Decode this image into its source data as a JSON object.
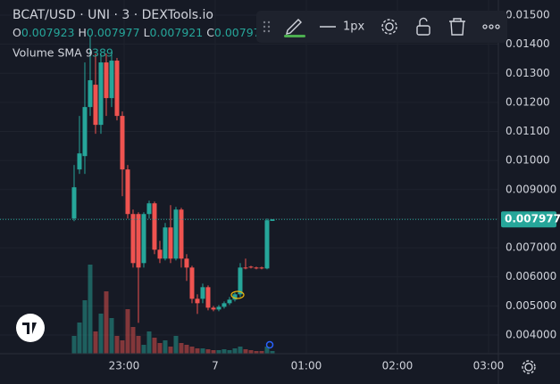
{
  "chart_data": {
    "type": "candlestick",
    "title": "BCAT/USD · UNI · 3 · DEXTools.io",
    "ohlc_labels": [
      "O",
      "H",
      "L",
      "C"
    ],
    "indicator": {
      "label": "Volume SMA 9",
      "value": 389
    },
    "toolbar": {
      "width_label": "1px"
    },
    "up_color": "#26a69a",
    "down_color": "#ef5350",
    "open": [
      0.008006,
      0.009693,
      0.010153,
      0.01184,
      0.012607,
      0.011227,
      0.013374,
      0.012147,
      0.013436,
      0.011534,
      0.009693,
      0.00816,
      0.00816,
      0.006472,
      0.00816,
      0.008528,
      0.006933,
      0.006626,
      0.007699,
      0.006626,
      0.008313,
      0.006626,
      0.006319,
      0.005245,
      0.005245,
      0.005644,
      0.004939,
      0.004877,
      0.004969,
      0.005092,
      0.005215,
      0.005399,
      0.006319,
      0.00635,
      0.006319,
      0.006319,
      0.006288,
      0.007923
    ],
    "high": [
      0.009847,
      0.011534,
      0.013374,
      0.014294,
      0.013681,
      0.013681,
      0.013681,
      0.01362,
      0.013528,
      0.011687,
      0.009847,
      0.008313,
      0.008221,
      0.008221,
      0.00862,
      0.008589,
      0.007239,
      0.007853,
      0.008466,
      0.008405,
      0.008374,
      0.006779,
      0.00638,
      0.005399,
      0.005767,
      0.005706,
      0.005,
      0.005031,
      0.005153,
      0.005307,
      0.00546,
      0.006472,
      0.006626,
      0.00638,
      0.00635,
      0.00635,
      0.008006,
      0.007977
    ],
    "low": [
      0.007914,
      0.00954,
      0.00954,
      0.011534,
      0.01092,
      0.01092,
      0.011534,
      0.01184,
      0.01138,
      0.008773,
      0.008006,
      0.006319,
      0.004417,
      0.006319,
      0.008006,
      0.006779,
      0.006472,
      0.006564,
      0.006472,
      0.006564,
      0.006319,
      0.005859,
      0.005092,
      0.004724,
      0.005092,
      0.004847,
      0.004816,
      0.004816,
      0.004908,
      0.005031,
      0.005153,
      0.005307,
      0.006258,
      0.006288,
      0.006258,
      0.006258,
      0.006258,
      0.007921
    ],
    "close": [
      0.00908,
      0.010245,
      0.01184,
      0.012761,
      0.011227,
      0.013374,
      0.012147,
      0.013436,
      0.011534,
      0.009693,
      0.00816,
      0.006472,
      0.006319,
      0.00816,
      0.008528,
      0.006933,
      0.006626,
      0.007699,
      0.006626,
      0.008313,
      0.006626,
      0.006319,
      0.005245,
      0.005092,
      0.005644,
      0.004939,
      0.004877,
      0.004969,
      0.005092,
      0.005215,
      0.005399,
      0.006319,
      0.006288,
      0.006319,
      0.006288,
      0.006288,
      0.007945,
      0.007977
    ],
    "volume": [
      400,
      700,
      1200,
      2000,
      500,
      900,
      1400,
      800,
      400,
      300,
      1000,
      600,
      400,
      200,
      500,
      360,
      240,
      300,
      160,
      400,
      240,
      200,
      160,
      120,
      120,
      100,
      80,
      80,
      100,
      80,
      120,
      160,
      100,
      80,
      60,
      60,
      160,
      60
    ],
    "volume_ylim": [
      0,
      2000
    ],
    "ylim": [
      0.003356,
      0.015521
    ],
    "yticks": [
      {
        "value": 0.004,
        "label": "0.004000"
      },
      {
        "value": 0.005,
        "label": "0.005000"
      },
      {
        "value": 0.006,
        "label": "0.006000"
      },
      {
        "value": 0.007,
        "label": "0.007000"
      },
      {
        "value": 0.008,
        "label": "0.008000"
      },
      {
        "value": 0.009,
        "label": "0.009000"
      },
      {
        "value": 0.01,
        "label": "0.01000"
      },
      {
        "value": 0.011,
        "label": "0.01100"
      },
      {
        "value": 0.012,
        "label": "0.01200"
      },
      {
        "value": 0.013,
        "label": "0.01300"
      },
      {
        "value": 0.014,
        "label": "0.01400"
      },
      {
        "value": 0.015,
        "label": "0.01500"
      }
    ],
    "xlim": [
      -13.83,
      79.17
    ],
    "xticks": [
      {
        "value": 9.33,
        "label": "23:00"
      },
      {
        "value": 26.33,
        "label": "7"
      },
      {
        "value": 43.33,
        "label": "01:00"
      },
      {
        "value": 60.33,
        "label": "02:00"
      },
      {
        "value": 77.33,
        "label": "03:00"
      }
    ],
    "grid": true
  }
}
